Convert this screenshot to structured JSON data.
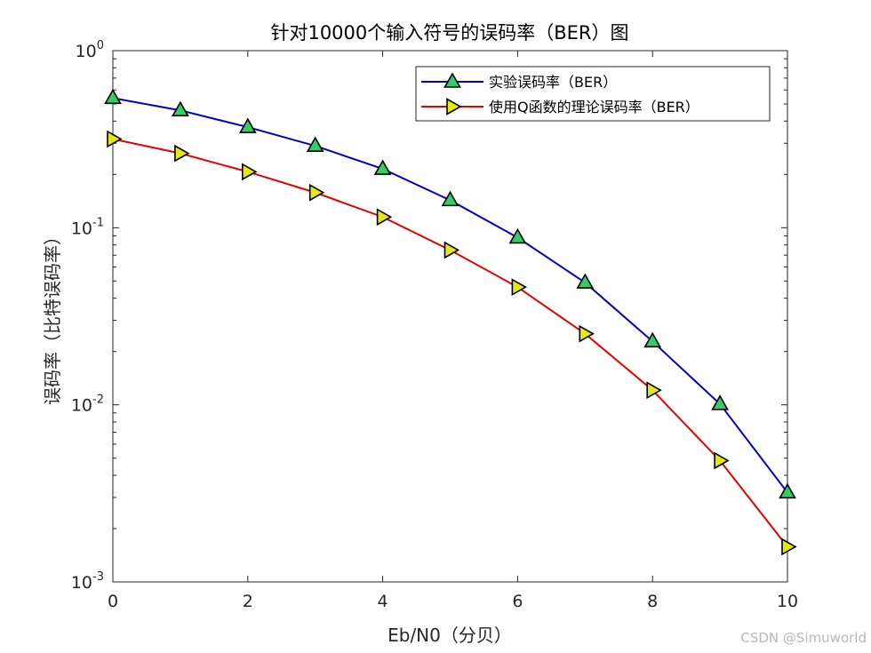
{
  "chart_data": {
    "type": "line",
    "title": "针对10000个输入符号的误码率（BER）图",
    "xlabel": "Eb/N0（分贝）",
    "ylabel": "误码率（比特误码率）",
    "xlim": [
      0,
      10
    ],
    "ylim": [
      0.001,
      1
    ],
    "yscale": "log",
    "x_ticks": [
      "0",
      "2",
      "4",
      "6",
      "8",
      "10"
    ],
    "y_ticks": [
      {
        "base": "10",
        "exp": "0",
        "value": 1
      },
      {
        "base": "10",
        "exp": "-1",
        "value": 0.1
      },
      {
        "base": "10",
        "exp": "-2",
        "value": 0.01
      },
      {
        "base": "10",
        "exp": "-3",
        "value": 0.001
      }
    ],
    "grid": false,
    "legend_position": "top-right",
    "x": [
      0,
      1,
      2,
      3,
      4,
      5,
      6,
      7,
      8,
      9,
      10
    ],
    "series": [
      {
        "name": "实验误码率（BER）",
        "color": "#0000cc",
        "marker": "triangle-up",
        "marker_fill": "#33cc66",
        "values": [
          0.54,
          0.46,
          0.37,
          0.29,
          0.215,
          0.143,
          0.088,
          0.049,
          0.0228,
          0.0101,
          0.0032
        ]
      },
      {
        "name": "使用Q函数的理论误码率（BER）",
        "color": "#e60000",
        "marker": "triangle-right",
        "marker_fill": "#e6e619",
        "values": [
          0.317,
          0.263,
          0.207,
          0.158,
          0.115,
          0.0748,
          0.0462,
          0.0252,
          0.0121,
          0.00484,
          0.00158
        ]
      }
    ]
  },
  "watermark": "CSDN @Simuworld"
}
